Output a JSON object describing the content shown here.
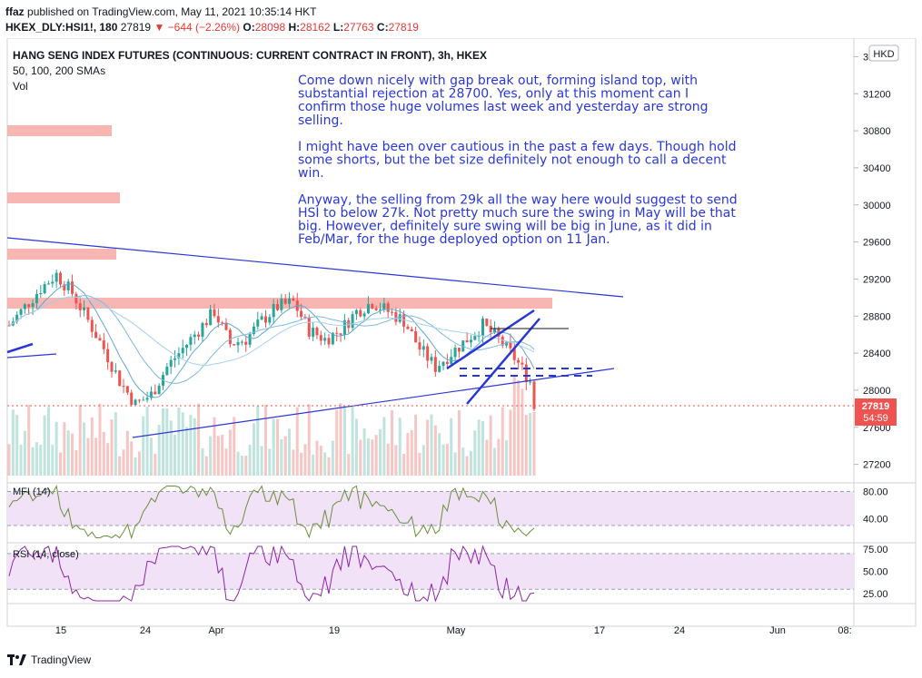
{
  "header": {
    "user": "ffaz",
    "published_text": "published on TradingView.com, May 11, 2021 10:35:14 HKT",
    "symbol": "HKEX_DLY:HSI1!, 180",
    "last": "27819",
    "change": "▼ −644 (−2.26%)",
    "o_label": "O:",
    "o": "28098",
    "h_label": "H:",
    "h": "28162",
    "l_label": "L:",
    "l": "27763",
    "c_label": "C:",
    "c": "27819"
  },
  "chart_data": {
    "type": "candlestick",
    "title": "HANG SENG INDEX FUTURES (CONTINUOUS: CURRENT CONTRACT IN FRONT), 3h, HKEX",
    "indicators_line": "50, 100, 200 SMAs",
    "volume_label": "Vol",
    "currency": "HKD",
    "price_axis": {
      "ticks": [
        "31600",
        "31200",
        "30800",
        "30400",
        "30000",
        "29600",
        "29200",
        "28800",
        "28400",
        "28000",
        "27600",
        "27200"
      ],
      "range": [
        27000,
        31800
      ]
    },
    "last_price_tag": {
      "price": "27819",
      "countdown": "54:59"
    },
    "x_axis_labels": [
      "15",
      "24",
      "Apr",
      "19",
      "May",
      "17",
      "24",
      "Jun",
      "08:"
    ],
    "annotation": [
      "Come down nicely with gap break out, forming island top, with",
      "substantial rejection at 28700. Yes, only at this moment can I",
      "confirm those huge volumes last week and yesterday are strong",
      "selling.",
      "",
      "I might have been over cautious in the past a few days. Though hold",
      "some shorts, but the bet size definitely not enough to call a decent",
      "win.",
      "",
      "Anyway, the selling from 29k all the way here would suggest to send",
      "HSI to below 27k. Not pretty much sure the swing in May will be that",
      "big. However, definitely sure swing will be big in June, as it did in",
      "Feb/Mar, for the huge deployed option on 11 Jan."
    ],
    "price_path": [
      [
        0,
        28700
      ],
      [
        4,
        28900
      ],
      [
        8,
        29100
      ],
      [
        12,
        29250
      ],
      [
        16,
        29050
      ],
      [
        20,
        28750
      ],
      [
        24,
        28450
      ],
      [
        28,
        28100
      ],
      [
        32,
        27850
      ],
      [
        36,
        27950
      ],
      [
        40,
        28250
      ],
      [
        44,
        28450
      ],
      [
        48,
        28650
      ],
      [
        52,
        28850
      ],
      [
        56,
        28500
      ],
      [
        60,
        28550
      ],
      [
        64,
        28750
      ],
      [
        68,
        28900
      ],
      [
        72,
        28950
      ],
      [
        76,
        28650
      ],
      [
        80,
        28550
      ],
      [
        84,
        28650
      ],
      [
        88,
        28850
      ],
      [
        92,
        28950
      ],
      [
        96,
        28850
      ],
      [
        100,
        28750
      ],
      [
        104,
        28450
      ],
      [
        108,
        28250
      ],
      [
        112,
        28400
      ],
      [
        116,
        28550
      ],
      [
        120,
        28700
      ],
      [
        124,
        28550
      ],
      [
        128,
        28350
      ],
      [
        132,
        28098
      ],
      [
        133,
        27819
      ]
    ],
    "mfi": {
      "label": "MFI (14)",
      "ticks": [
        "80.00",
        "40.00"
      ],
      "range": [
        10,
        90
      ],
      "band": [
        30,
        80
      ]
    },
    "rsi": {
      "label": "RSI (14, close)",
      "ticks": [
        "75.00",
        "50.00",
        "25.00"
      ],
      "range": [
        15,
        80
      ],
      "band": [
        30,
        70
      ]
    }
  },
  "footer": {
    "brand": "TradingView"
  }
}
